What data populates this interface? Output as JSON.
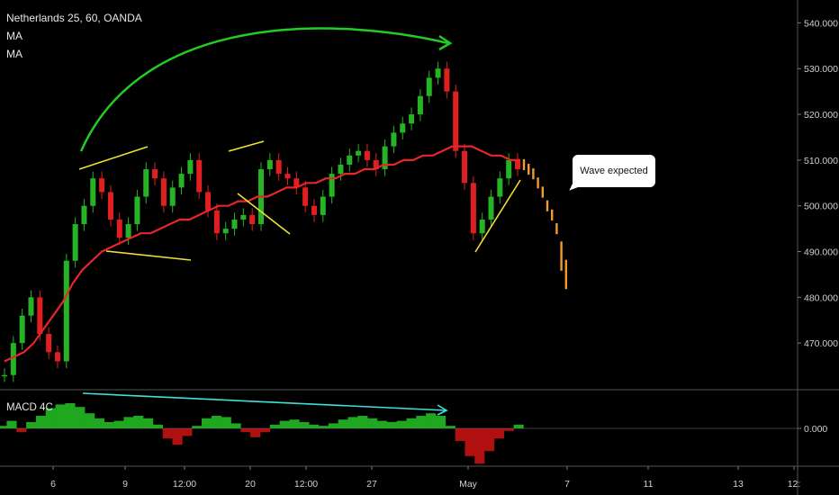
{
  "header": {
    "title": "Netherlands 25, 60, OANDA",
    "indicators": [
      "MA",
      "MA"
    ]
  },
  "callout": {
    "text": "Wave expected"
  },
  "macd_panel": {
    "label": "MACD 4C",
    "zero_label": "0.000"
  },
  "colors": {
    "background": "#000000",
    "candle_up": "#26b326",
    "candle_down": "#e02020",
    "ma_line": "#e8262a",
    "trend_arrow": "#22cc22",
    "triangle_lines": "#f0e030",
    "macd_divergence": "#40e0d8",
    "projection": "#f29a2e",
    "macd_pos": "#1fa81f",
    "macd_neg": "#b01010"
  },
  "chart_data": {
    "type": "line",
    "ylim": [
      460,
      545
    ],
    "y_ticks": [
      "540.000",
      "530.000",
      "520.000",
      "510.000",
      "500.000",
      "490.000",
      "480.000",
      "470.000"
    ],
    "x_ticks": [
      "6",
      "9",
      "12:00",
      "20",
      "12:00",
      "27",
      "May",
      "7",
      "11",
      "13",
      "12:"
    ],
    "series": [
      {
        "values": [
          463,
          470,
          476,
          480,
          472,
          468,
          466,
          488,
          496,
          500,
          506,
          503,
          497,
          493,
          496,
          502,
          508,
          506,
          500,
          504,
          507,
          510,
          503,
          499,
          494,
          495,
          497,
          498,
          496,
          508,
          510,
          507,
          506,
          504,
          500,
          498,
          502,
          507,
          509,
          511,
          512,
          510,
          508,
          513,
          516,
          518,
          520,
          524,
          528,
          530,
          525,
          512,
          505,
          494,
          497,
          502,
          506,
          510,
          508
        ]
      },
      {
        "values": [
          466,
          467,
          468,
          470,
          473,
          476,
          479,
          483,
          486,
          488,
          490,
          491,
          492,
          493,
          494,
          494,
          495,
          496,
          497,
          497,
          498,
          499,
          500,
          500,
          501,
          501,
          502,
          502,
          503,
          504,
          504,
          505,
          505,
          506,
          506,
          507,
          507,
          508,
          508,
          509,
          509,
          510,
          510,
          511,
          511,
          512,
          513,
          513,
          513,
          512,
          511,
          511,
          510,
          510
        ]
      }
    ],
    "projection_values": [
      509,
      508,
      507,
      505,
      503,
      500,
      498,
      495,
      491,
      487
    ],
    "macd_values": [
      0.2,
      0.6,
      -0.3,
      0.5,
      1.0,
      1.6,
      1.9,
      2.0,
      1.7,
      1.2,
      0.8,
      0.5,
      0.6,
      0.9,
      1.0,
      0.8,
      0.3,
      -0.8,
      -1.3,
      -0.6,
      0.2,
      0.8,
      1.0,
      0.9,
      0.4,
      -0.3,
      -0.7,
      -0.3,
      0.3,
      0.6,
      0.7,
      0.5,
      0.3,
      0.2,
      0.4,
      0.7,
      0.9,
      1.0,
      0.8,
      0.6,
      0.5,
      0.6,
      0.8,
      1.0,
      1.2,
      1.0,
      0.2,
      -1.0,
      -2.2,
      -2.8,
      -1.8,
      -0.8,
      -0.2,
      0.3
    ]
  }
}
